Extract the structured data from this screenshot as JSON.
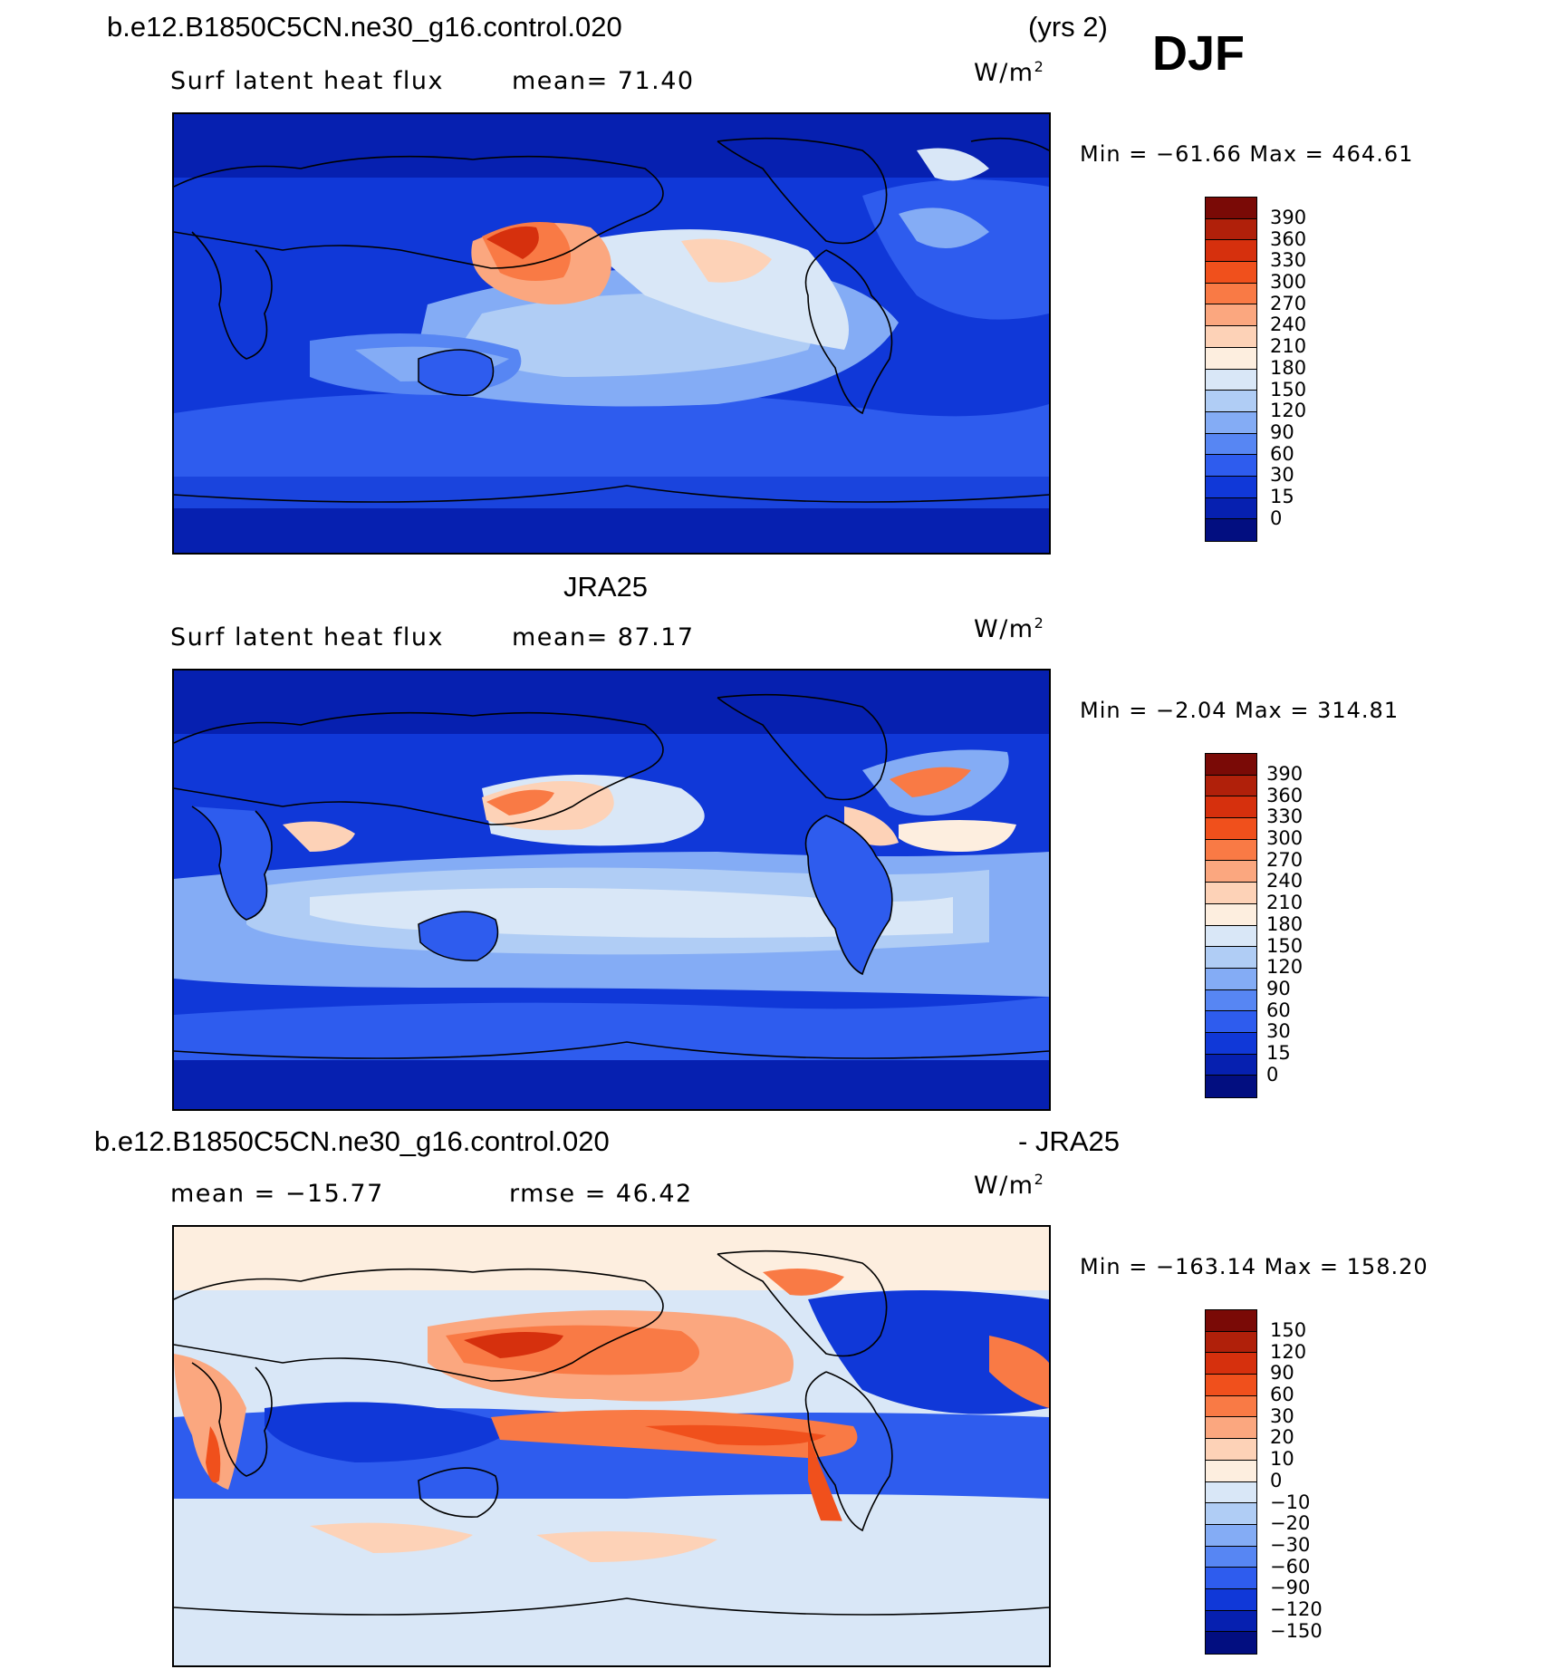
{
  "header": {
    "case_name": "b.e12.B1850C5CN.ne30_g16.control.020",
    "years": "(yrs 2)",
    "season": "DJF"
  },
  "panels": [
    {
      "title": "",
      "variable": "Surf latent heat flux",
      "stat_left": "",
      "stat_right": "mean=   71.40",
      "units": "W/m",
      "units_sup": "2",
      "minmax": "Min  =  −61.66  Max  =  464.61",
      "colorbar": {
        "labels": [
          "390",
          "360",
          "330",
          "300",
          "270",
          "240",
          "210",
          "180",
          "150",
          "120",
          "90",
          "60",
          "30",
          "15",
          "0"
        ],
        "colors": [
          "#7a0a06",
          "#b0200a",
          "#d6300d",
          "#f0501c",
          "#f97a45",
          "#fba77f",
          "#fdd2b7",
          "#fdeedf",
          "#d9e7f7",
          "#b0cdf5",
          "#84acf5",
          "#5786f3",
          "#2e5cee",
          "#1038d8",
          "#0620b0",
          "#020e80"
        ]
      }
    },
    {
      "title": "JRA25",
      "variable": "Surf latent heat flux",
      "stat_left": "",
      "stat_right": "mean=   87.17",
      "units": "W/m",
      "units_sup": "2",
      "minmax": "Min  =   −2.04  Max  =  314.81",
      "colorbar": {
        "labels": [
          "390",
          "360",
          "330",
          "300",
          "270",
          "240",
          "210",
          "180",
          "150",
          "120",
          "90",
          "60",
          "30",
          "15",
          "0"
        ],
        "colors": [
          "#7a0a06",
          "#b0200a",
          "#d6300d",
          "#f0501c",
          "#f97a45",
          "#fba77f",
          "#fdd2b7",
          "#fdeedf",
          "#d9e7f7",
          "#b0cdf5",
          "#84acf5",
          "#5786f3",
          "#2e5cee",
          "#1038d8",
          "#0620b0",
          "#020e80"
        ]
      }
    },
    {
      "title": "b.e12.B1850C5CN.ne30_g16.control.020",
      "title_right": "- JRA25",
      "variable": "",
      "stat_left": "mean  =  −15.77",
      "stat_right": "rmse  =   46.42",
      "units": "W/m",
      "units_sup": "2",
      "minmax": "Min  =  −163.14  Max  =  158.20",
      "colorbar": {
        "labels": [
          "150",
          "120",
          "90",
          "60",
          "30",
          "20",
          "10",
          "0",
          "−10",
          "−20",
          "−30",
          "−60",
          "−90",
          "−120",
          "−150"
        ],
        "colors": [
          "#7a0a06",
          "#b0200a",
          "#d6300d",
          "#f0501c",
          "#f97a45",
          "#fba77f",
          "#fdd2b7",
          "#fdeedf",
          "#d9e7f7",
          "#b0cdf5",
          "#84acf5",
          "#5786f3",
          "#2e5cee",
          "#1038d8",
          "#0620b0",
          "#020e80"
        ]
      }
    }
  ]
}
